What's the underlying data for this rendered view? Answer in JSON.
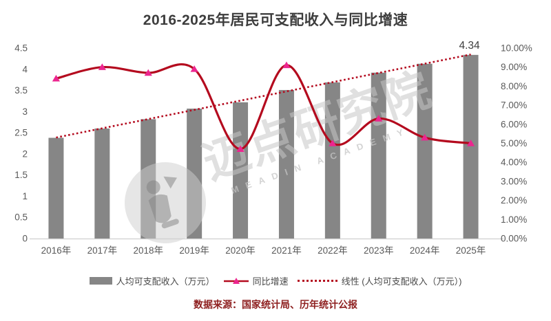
{
  "source": "数据来源：国家统计局、历年统计公报",
  "watermark": {
    "cn": "迈点研究院",
    "en": "MEADIN ACADEMY"
  },
  "legend": [
    {
      "label": "人均可支配收入（万元）",
      "swatch": "gray-bar"
    },
    {
      "label": "同比增速",
      "swatch": "red-line-triangle-marker"
    },
    {
      "label": "线性 (人均可支配收入（万元）)",
      "swatch": "red-dotted-line"
    }
  ],
  "colors": {
    "bar": "#868686",
    "line": "#b40a1e",
    "marker": "#ec268f",
    "trend": "#b40a1e",
    "axis_text": "#595959",
    "axis_line": "#d6d6d6",
    "title_text": "#3d3d3d",
    "source_text": "#8e1f1f"
  },
  "chart_data": {
    "type": "bar+line",
    "title": "2016-2025年居民可支配收入与同比增速",
    "categories": [
      "2016年",
      "2017年",
      "2018年",
      "2019年",
      "2020年",
      "2021年",
      "2022年",
      "2023年",
      "2024年",
      "2025年"
    ],
    "series": [
      {
        "name": "人均可支配收入（万元）",
        "type": "bar",
        "axis": "left",
        "values": [
          2.38,
          2.6,
          2.82,
          3.07,
          3.22,
          3.51,
          3.69,
          3.92,
          4.13,
          4.34
        ]
      },
      {
        "name": "同比增速",
        "type": "line",
        "axis": "right",
        "unit": "%",
        "values": [
          8.4,
          9.0,
          8.7,
          8.9,
          4.7,
          9.1,
          5.0,
          6.3,
          5.3,
          5.0
        ]
      },
      {
        "name": "线性 (人均可支配收入（万元）)",
        "type": "linear-trend",
        "axis": "left",
        "of_series": 0
      }
    ],
    "left_axis": {
      "min": 0,
      "max": 4.5,
      "ticks": [
        "0",
        "0.5",
        "1",
        "1.5",
        "2",
        "2.5",
        "3",
        "3.5",
        "4",
        "4.5"
      ]
    },
    "right_axis": {
      "min": 0,
      "max": 10,
      "ticks": [
        "0.00%",
        "1.00%",
        "2.00%",
        "3.00%",
        "4.00%",
        "5.00%",
        "6.00%",
        "7.00%",
        "8.00%",
        "9.00%",
        "10.00%"
      ]
    },
    "grid": false,
    "legend_position": "bottom",
    "annotations": [
      {
        "text": "4.34",
        "category_index": 9,
        "series": 0
      }
    ]
  }
}
